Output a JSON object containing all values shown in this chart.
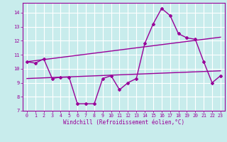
{
  "xlabel": "Windchill (Refroidissement éolien,°C)",
  "background_color": "#c8ecec",
  "grid_color": "#ffffff",
  "line_color": "#990099",
  "xlim": [
    -0.5,
    23.5
  ],
  "ylim": [
    7.0,
    14.7
  ],
  "yticks": [
    7,
    8,
    9,
    10,
    11,
    12,
    13,
    14
  ],
  "xticks": [
    0,
    1,
    2,
    3,
    4,
    5,
    6,
    7,
    8,
    9,
    10,
    11,
    12,
    13,
    14,
    15,
    16,
    17,
    18,
    19,
    20,
    21,
    22,
    23
  ],
  "main_series": [
    10.5,
    10.4,
    10.7,
    9.3,
    9.4,
    9.4,
    7.5,
    7.5,
    7.5,
    9.3,
    9.5,
    8.5,
    9.0,
    9.3,
    11.8,
    13.2,
    14.3,
    13.8,
    12.5,
    12.2,
    12.1,
    10.5,
    9.0,
    9.5
  ],
  "trend1_x": [
    0,
    23
  ],
  "trend1_y": [
    10.5,
    12.25
  ],
  "trend2_x": [
    0,
    23
  ],
  "trend2_y": [
    9.3,
    9.85
  ]
}
